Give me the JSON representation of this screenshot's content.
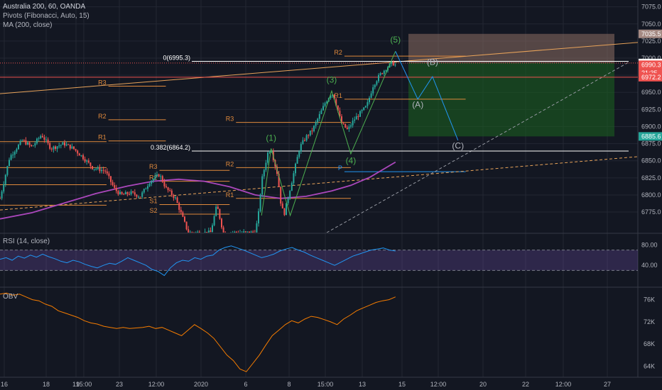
{
  "legend": {
    "symbol": "Australia 200, 60, OANDA",
    "pivots": "Pivots (Fibonacci, Auto, 15)",
    "ma": "MA (200, close)",
    "rsi": "RSI (14, close)",
    "obv": "OBV"
  },
  "colors": {
    "background": "#131722",
    "grid": "#232733",
    "candle_up": "#26a69a",
    "candle_down": "#ef5350",
    "ma": "#ab47bc",
    "rsi_line": "#2196f3",
    "rsi_band": "#7e57c2",
    "obv_line": "#f57c00",
    "pivot": "#e08a3c",
    "fib_line": "#ffffff",
    "trendline": "#e8a35a",
    "wave_line": "#4caf50",
    "wave_label": "#4caf50",
    "projection_line": "#2196f3",
    "projection_label": "#b2b5be",
    "target_zone": "#1b5e20",
    "stop_zone": "#8d6e63",
    "axis_text": "#b2b5be"
  },
  "chart_data": [
    {
      "type": "candlestick",
      "panel": "price",
      "y_ticks": [
        6775.0,
        6800.0,
        6825.0,
        6850.0,
        6875.0,
        6900.0,
        6925.0,
        6950.0,
        6975.0,
        7000.0,
        7025.0,
        7050.0,
        7075.0
      ],
      "ylim": [
        6745,
        7085
      ],
      "x_ticks": [
        "16",
        "18",
        "19",
        "15:00",
        "23",
        "12:00",
        "2020",
        "6",
        "8",
        "15:00",
        "13",
        "15",
        "12:00",
        "20",
        "22",
        "12:00",
        "27"
      ],
      "price_labels": [
        {
          "text": "7035.5",
          "value": 7035.5,
          "color": "#a58a83"
        },
        {
          "text": "6992.9",
          "value": 6992.9,
          "color": "#ffffff"
        },
        {
          "text": "6990.3",
          "value": 6990.3,
          "color": "#ef5350"
        },
        {
          "text": "21:35",
          "value": 6978.0,
          "color": "#ef5350"
        },
        {
          "text": "6972.2",
          "value": 6972.2,
          "color": "#ef5350"
        },
        {
          "text": "6885.6",
          "value": 6885.6,
          "color": "#26a69a"
        }
      ],
      "fib_levels": [
        {
          "text": "0(6995.3)",
          "value": 6995.3
        },
        {
          "text": "0.382(6864.2)",
          "value": 6864.2
        }
      ],
      "pivot_labels": [
        "R3",
        "R2",
        "R1",
        "P",
        "S1",
        "S2",
        "R2",
        "R3",
        "R1",
        "R2",
        "R3",
        "R1",
        "S1",
        "S2",
        "R2",
        "R1",
        "P"
      ],
      "pivot_segments": [
        {
          "label": "R3",
          "from": 0.17,
          "to": 0.26,
          "value": 6959
        },
        {
          "label": "R2",
          "from": 0.17,
          "to": 0.26,
          "value": 6910
        },
        {
          "label": "R1",
          "from": 0.17,
          "to": 0.26,
          "value": 6879
        },
        {
          "label": "R3",
          "from": 0.25,
          "to": 0.36,
          "value": 6836
        },
        {
          "label": "R2",
          "from": 0.25,
          "to": 0.36,
          "value": 6820
        },
        {
          "label": "S1",
          "from": 0.25,
          "to": 0.36,
          "value": 6786
        },
        {
          "label": "S2",
          "from": 0.25,
          "to": 0.36,
          "value": 6772
        },
        {
          "label": "R3",
          "from": 0.37,
          "to": 0.55,
          "value": 6906
        },
        {
          "label": "R2",
          "from": 0.37,
          "to": 0.55,
          "value": 6840
        },
        {
          "label": "R1",
          "from": 0.37,
          "to": 0.55,
          "value": 6795
        },
        {
          "label": "R2",
          "from": 0.54,
          "to": 0.73,
          "value": 7003
        },
        {
          "label": "R1",
          "from": 0.54,
          "to": 0.73,
          "value": 6940
        },
        {
          "label": "P",
          "from": 0.54,
          "to": 0.73,
          "value": 6834
        }
      ],
      "waves": [
        {
          "label": "(1)",
          "x": 0.425,
          "y": 6879
        },
        {
          "label": "(3)",
          "x": 0.52,
          "y": 6964
        },
        {
          "label": "(4)",
          "x": 0.55,
          "y": 6846
        },
        {
          "label": "(5)",
          "x": 0.62,
          "y": 7023
        },
        {
          "label": "(A)",
          "x": 0.655,
          "y": 6928
        },
        {
          "label": "(B)",
          "x": 0.678,
          "y": 6990
        },
        {
          "label": "(C)",
          "x": 0.718,
          "y": 6868
        }
      ],
      "ma": [
        [
          0.0,
          6765
        ],
        [
          0.05,
          6774
        ],
        [
          0.1,
          6788
        ],
        [
          0.15,
          6802
        ],
        [
          0.2,
          6813
        ],
        [
          0.24,
          6820
        ],
        [
          0.28,
          6823
        ],
        [
          0.32,
          6820
        ],
        [
          0.36,
          6812
        ],
        [
          0.4,
          6800
        ],
        [
          0.44,
          6795
        ],
        [
          0.48,
          6798
        ],
        [
          0.52,
          6806
        ],
        [
          0.55,
          6814
        ],
        [
          0.58,
          6826
        ],
        [
          0.62,
          6848
        ]
      ],
      "price_path": [
        [
          0.0,
          6795
        ],
        [
          0.015,
          6855
        ],
        [
          0.035,
          6880
        ],
        [
          0.05,
          6870
        ],
        [
          0.065,
          6888
        ],
        [
          0.08,
          6868
        ],
        [
          0.1,
          6875
        ],
        [
          0.115,
          6868
        ],
        [
          0.13,
          6855
        ],
        [
          0.145,
          6840
        ],
        [
          0.165,
          6835
        ],
        [
          0.18,
          6808
        ],
        [
          0.19,
          6800
        ],
        [
          0.205,
          6803
        ],
        [
          0.22,
          6798
        ],
        [
          0.235,
          6820
        ],
        [
          0.25,
          6830
        ],
        [
          0.26,
          6810
        ],
        [
          0.275,
          6795
        ],
        [
          0.285,
          6770
        ],
        [
          0.295,
          6745
        ],
        [
          0.33,
          6745
        ],
        [
          0.34,
          6785
        ],
        [
          0.35,
          6745
        ],
        [
          0.4,
          6745
        ],
        [
          0.405,
          6770
        ],
        [
          0.41,
          6820
        ],
        [
          0.42,
          6862
        ],
        [
          0.425,
          6868
        ],
        [
          0.43,
          6848
        ],
        [
          0.435,
          6830
        ],
        [
          0.44,
          6790
        ],
        [
          0.445,
          6770
        ],
        [
          0.45,
          6790
        ],
        [
          0.46,
          6830
        ],
        [
          0.47,
          6870
        ],
        [
          0.48,
          6885
        ],
        [
          0.49,
          6895
        ],
        [
          0.5,
          6915
        ],
        [
          0.51,
          6935
        ],
        [
          0.52,
          6950
        ],
        [
          0.525,
          6940
        ],
        [
          0.535,
          6905
        ],
        [
          0.545,
          6895
        ],
        [
          0.555,
          6910
        ],
        [
          0.565,
          6920
        ],
        [
          0.575,
          6930
        ],
        [
          0.585,
          6960
        ],
        [
          0.595,
          6975
        ],
        [
          0.605,
          6985
        ],
        [
          0.615,
          6993
        ],
        [
          0.62,
          6990
        ]
      ],
      "rsi": {
        "ylim": [
          0,
          100
        ],
        "y_ticks": [
          80.0,
          40.0
        ],
        "band": [
          30,
          70
        ],
        "values": [
          52,
          55,
          50,
          58,
          54,
          60,
          56,
          62,
          57,
          53,
          48,
          45,
          50,
          47,
          42,
          38,
          35,
          40,
          44,
          42,
          48,
          55,
          50,
          45,
          40,
          32,
          28,
          20,
          35,
          45,
          50,
          48,
          55,
          52,
          58,
          60,
          70,
          75,
          78,
          74,
          70,
          65,
          60,
          55,
          58,
          62,
          68,
          72,
          75,
          70,
          66,
          60,
          55,
          50,
          45,
          40,
          46,
          52,
          58,
          62,
          66,
          70,
          72,
          74,
          70,
          68
        ]
      },
      "obv": {
        "y_ticks": [
          "76K",
          "72K",
          "68K",
          "64K"
        ],
        "ylim": [
          62,
          78
        ],
        "values": [
          77.0,
          77.2,
          76.8,
          77.0,
          76.5,
          76.0,
          75.8,
          75.2,
          74.8,
          74.0,
          73.6,
          73.2,
          72.8,
          72.2,
          71.8,
          71.6,
          71.2,
          71.0,
          70.8,
          71.0,
          70.8,
          70.9,
          71.0,
          71.2,
          70.8,
          71.0,
          70.5,
          70.0,
          69.5,
          70.5,
          71.5,
          70.8,
          70.0,
          69.0,
          67.5,
          66.0,
          65.0,
          63.5,
          63.0,
          64.5,
          66.0,
          67.8,
          69.5,
          70.5,
          71.5,
          72.2,
          71.8,
          72.5,
          73.0,
          72.8,
          72.4,
          72.0,
          71.5,
          72.5,
          73.2,
          74.0,
          74.5,
          75.0,
          75.5,
          75.8,
          76.0,
          76.5
        ]
      }
    }
  ]
}
